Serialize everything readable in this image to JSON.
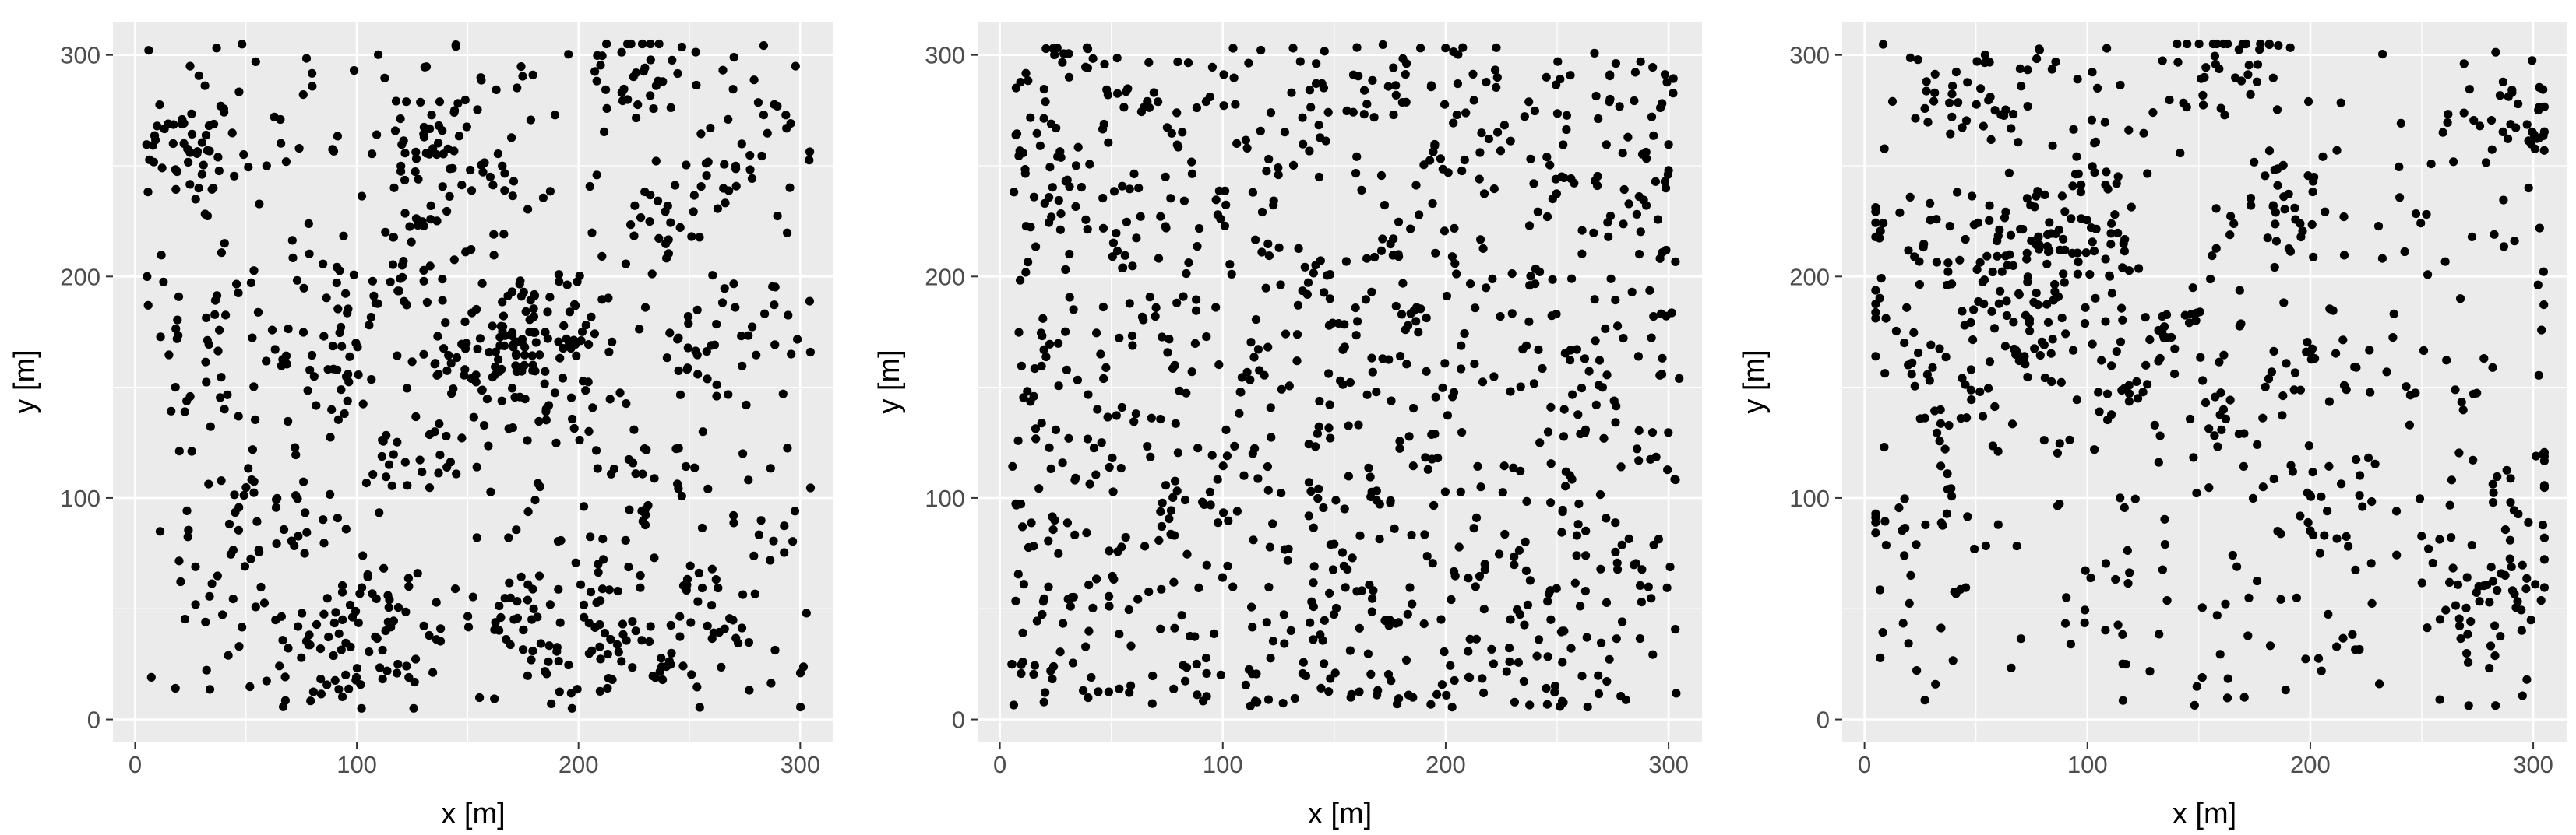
{
  "chart_data": [
    {
      "type": "scatter",
      "title": "",
      "xlabel": "x [m]",
      "ylabel": "y [m]",
      "xlim": [
        -10,
        315
      ],
      "ylim": [
        -10,
        315
      ],
      "x_ticks": [
        0,
        100,
        200,
        300
      ],
      "y_ticks": [
        0,
        100,
        200,
        300
      ],
      "grid": true,
      "panel_background": "#EBEBEB",
      "point_color": "#000000",
      "legend": "none",
      "point_count": 1000,
      "x_extent": [
        5,
        305
      ],
      "y_extent": [
        5,
        305
      ],
      "pattern": "clustered",
      "seed": 11
    },
    {
      "type": "scatter",
      "title": "",
      "xlabel": "x [m]",
      "ylabel": "y [m]",
      "xlim": [
        -10,
        315
      ],
      "ylim": [
        -10,
        315
      ],
      "x_ticks": [
        0,
        100,
        200,
        300
      ],
      "y_ticks": [
        0,
        100,
        200,
        300
      ],
      "grid": true,
      "panel_background": "#EBEBEB",
      "point_color": "#000000",
      "legend": "none",
      "point_count": 1000,
      "x_extent": [
        5,
        305
      ],
      "y_extent": [
        5,
        305
      ],
      "pattern": "random",
      "seed": 23
    },
    {
      "type": "scatter",
      "title": "",
      "xlabel": "x [m]",
      "ylabel": "y [m]",
      "xlim": [
        -10,
        315
      ],
      "ylim": [
        -10,
        315
      ],
      "x_ticks": [
        0,
        100,
        200,
        300
      ],
      "y_ticks": [
        0,
        100,
        200,
        300
      ],
      "grid": true,
      "panel_background": "#EBEBEB",
      "point_color": "#000000",
      "legend": "none",
      "point_count": 800,
      "x_extent": [
        5,
        305
      ],
      "y_extent": [
        5,
        305
      ],
      "pattern": "clustered",
      "seed": 37
    }
  ]
}
